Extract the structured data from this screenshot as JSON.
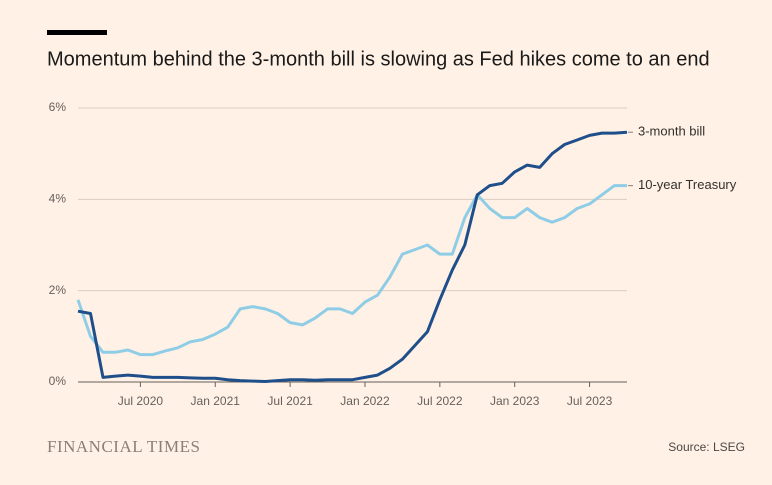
{
  "chart_data": {
    "type": "line",
    "title": "Momentum behind the 3-month bill is slowing as Fed hikes come to an end",
    "source": "Source: LSEG",
    "brand": "FINANCIAL TIMES",
    "x": [
      "2020-02",
      "2020-03",
      "2020-04",
      "2020-05",
      "2020-06",
      "2020-07",
      "2020-08",
      "2020-09",
      "2020-10",
      "2020-11",
      "2020-12",
      "2021-01",
      "2021-02",
      "2021-03",
      "2021-04",
      "2021-05",
      "2021-06",
      "2021-07",
      "2021-08",
      "2021-09",
      "2021-10",
      "2021-11",
      "2021-12",
      "2022-01",
      "2022-02",
      "2022-03",
      "2022-04",
      "2022-05",
      "2022-06",
      "2022-07",
      "2022-08",
      "2022-09",
      "2022-10",
      "2022-11",
      "2022-12",
      "2023-01",
      "2023-02",
      "2023-03",
      "2023-04",
      "2023-05",
      "2023-06",
      "2023-07",
      "2023-08",
      "2023-09",
      "2023-10"
    ],
    "series": [
      {
        "name": "3-month bill",
        "color": "#1f4f8a",
        "values": [
          1.55,
          1.5,
          0.1,
          0.13,
          0.15,
          0.13,
          0.1,
          0.1,
          0.1,
          0.09,
          0.08,
          0.08,
          0.05,
          0.03,
          0.02,
          0.01,
          0.03,
          0.05,
          0.05,
          0.04,
          0.05,
          0.05,
          0.05,
          0.1,
          0.15,
          0.3,
          0.5,
          0.8,
          1.1,
          1.8,
          2.45,
          3.0,
          4.1,
          4.3,
          4.35,
          4.6,
          4.75,
          4.7,
          5.0,
          5.2,
          5.3,
          5.4,
          5.45,
          5.45,
          5.47
        ]
      },
      {
        "name": "10-year Treasury",
        "color": "#8fcde6",
        "values": [
          1.8,
          1.0,
          0.65,
          0.65,
          0.7,
          0.6,
          0.6,
          0.68,
          0.75,
          0.88,
          0.93,
          1.05,
          1.2,
          1.6,
          1.65,
          1.6,
          1.5,
          1.3,
          1.25,
          1.4,
          1.6,
          1.6,
          1.5,
          1.75,
          1.9,
          2.3,
          2.8,
          2.9,
          3.0,
          2.8,
          2.8,
          3.6,
          4.1,
          3.8,
          3.6,
          3.6,
          3.8,
          3.6,
          3.5,
          3.6,
          3.8,
          3.9,
          4.1,
          4.3,
          4.3
        ]
      }
    ],
    "xlim": [
      "2020-02",
      "2023-10"
    ],
    "xticks": [
      {
        "value": "2020-07",
        "label": "Jul 2020"
      },
      {
        "value": "2021-01",
        "label": "Jan 2021"
      },
      {
        "value": "2021-07",
        "label": "Jul 2021"
      },
      {
        "value": "2022-01",
        "label": "Jan 2022"
      },
      {
        "value": "2022-07",
        "label": "Jul 2022"
      },
      {
        "value": "2023-01",
        "label": "Jan 2023"
      },
      {
        "value": "2023-07",
        "label": "Jul 2023"
      }
    ],
    "ylim": [
      0,
      6
    ],
    "yticks": [
      {
        "value": 0,
        "label": "0%"
      },
      {
        "value": 2,
        "label": "2%"
      },
      {
        "value": 4,
        "label": "4%"
      },
      {
        "value": 6,
        "label": "6%"
      }
    ],
    "grid": true
  }
}
